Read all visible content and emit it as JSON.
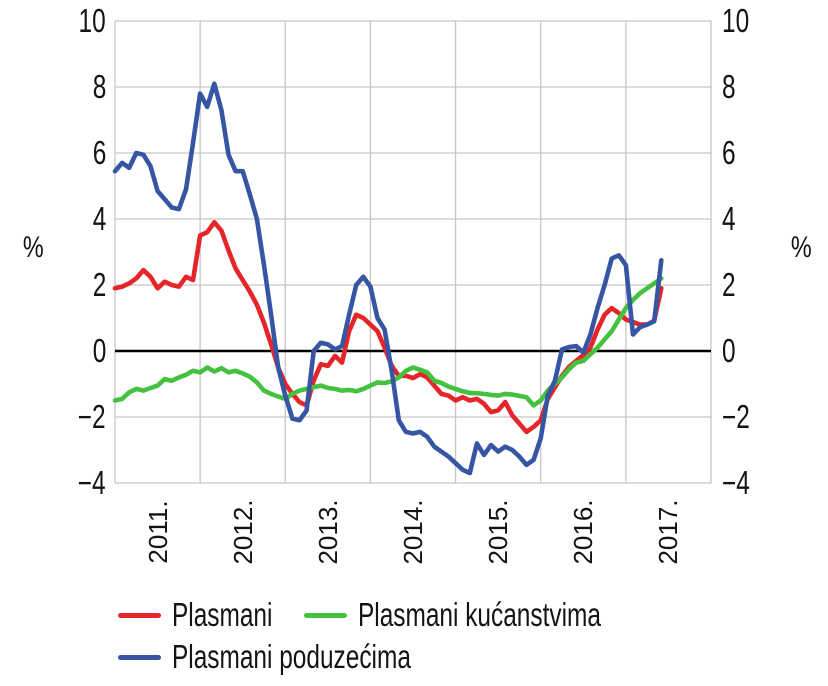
{
  "axes": {
    "y_left_label": "%",
    "y_right_label": "%",
    "y_ticks": [
      "10",
      "8",
      "6",
      "4",
      "2",
      "0",
      "−2",
      "−4"
    ],
    "x_ticks": [
      "2011.",
      "2012.",
      "2013.",
      "2014.",
      "2015.",
      "2016.",
      "2017."
    ]
  },
  "legend": {
    "items": [
      {
        "id": "plasmani",
        "label": "Plasmani",
        "color": "#e5252a"
      },
      {
        "id": "plasmani-kucanstvima",
        "label": "Plasmani kućanstvima",
        "color": "#44c13e"
      },
      {
        "id": "plasmani-poduzecima",
        "label": "Plasmani poduzećima",
        "color": "#3655a3"
      }
    ]
  },
  "colors": {
    "grid": "#c6c6c6",
    "zero_line": "#000000",
    "text": "#141414",
    "background": "#ffffff"
  },
  "chart_data": {
    "type": "line",
    "title": "",
    "ylabel": "%",
    "frequency": "monthly",
    "start": "2011-01",
    "ylim": [
      -4,
      10
    ],
    "y_tick_step": 2,
    "x_range_years": [
      2011,
      2018
    ],
    "grid": true,
    "zero_line": true,
    "legend_position": "bottom",
    "series": [
      {
        "id": "plasmani",
        "name": "Plasmani",
        "color": "#e5252a",
        "values": [
          1.9,
          1.95,
          2.05,
          2.2,
          2.45,
          2.25,
          1.9,
          2.1,
          2.0,
          1.95,
          2.25,
          2.15,
          3.5,
          3.6,
          3.9,
          3.65,
          3.05,
          2.5,
          2.15,
          1.8,
          1.4,
          0.85,
          0.2,
          -0.5,
          -1.0,
          -1.3,
          -1.55,
          -1.65,
          -0.9,
          -0.4,
          -0.45,
          -0.15,
          -0.35,
          0.6,
          1.1,
          1.0,
          0.8,
          0.6,
          0.1,
          -0.45,
          -0.75,
          -0.75,
          -0.82,
          -0.7,
          -0.8,
          -1.05,
          -1.3,
          -1.35,
          -1.5,
          -1.4,
          -1.5,
          -1.45,
          -1.6,
          -1.85,
          -1.8,
          -1.55,
          -1.95,
          -2.2,
          -2.45,
          -2.3,
          -2.1,
          -1.45,
          -1.1,
          -0.75,
          -0.48,
          -0.3,
          -0.12,
          0.1,
          0.65,
          1.1,
          1.3,
          1.15,
          0.95,
          0.88,
          0.8,
          0.8,
          0.92,
          1.9
        ]
      },
      {
        "id": "plasmani-kucanstvima",
        "name": "Plasmani kućanstvima",
        "color": "#44c13e",
        "values": [
          -1.5,
          -1.45,
          -1.25,
          -1.15,
          -1.2,
          -1.12,
          -1.05,
          -0.85,
          -0.9,
          -0.8,
          -0.72,
          -0.6,
          -0.65,
          -0.5,
          -0.62,
          -0.52,
          -0.65,
          -0.6,
          -0.68,
          -0.78,
          -0.95,
          -1.2,
          -1.3,
          -1.38,
          -1.45,
          -1.3,
          -1.2,
          -1.15,
          -1.1,
          -1.05,
          -1.12,
          -1.15,
          -1.2,
          -1.18,
          -1.22,
          -1.15,
          -1.05,
          -0.95,
          -0.97,
          -0.92,
          -0.8,
          -0.6,
          -0.5,
          -0.57,
          -0.65,
          -0.9,
          -0.97,
          -1.08,
          -1.15,
          -1.22,
          -1.27,
          -1.28,
          -1.3,
          -1.33,
          -1.35,
          -1.3,
          -1.32,
          -1.36,
          -1.4,
          -1.65,
          -1.5,
          -1.2,
          -1.0,
          -0.8,
          -0.55,
          -0.35,
          -0.3,
          -0.1,
          0.1,
          0.35,
          0.6,
          0.95,
          1.3,
          1.55,
          1.75,
          1.9,
          2.05,
          2.2
        ]
      },
      {
        "id": "plasmani-poduzecima",
        "name": "Plasmani poduzećima",
        "color": "#3655a3",
        "values": [
          5.45,
          5.7,
          5.55,
          6.0,
          5.95,
          5.6,
          4.85,
          4.6,
          4.35,
          4.3,
          4.9,
          6.3,
          7.8,
          7.4,
          8.1,
          7.3,
          5.95,
          5.45,
          5.45,
          4.75,
          4.0,
          2.6,
          1.1,
          -0.5,
          -1.35,
          -2.05,
          -2.1,
          -1.8,
          0.0,
          0.25,
          0.2,
          0.05,
          0.15,
          1.1,
          2.0,
          2.25,
          1.95,
          1.0,
          0.65,
          -0.6,
          -2.1,
          -2.45,
          -2.5,
          -2.45,
          -2.6,
          -2.9,
          -3.05,
          -3.2,
          -3.4,
          -3.6,
          -3.7,
          -2.8,
          -3.15,
          -2.85,
          -3.05,
          -2.9,
          -3.0,
          -3.2,
          -3.45,
          -3.3,
          -2.65,
          -1.35,
          -0.9,
          0.05,
          0.12,
          0.15,
          -0.05,
          0.5,
          1.3,
          2.0,
          2.8,
          2.9,
          2.6,
          0.5,
          0.72,
          0.8,
          0.9,
          2.75
        ]
      }
    ]
  }
}
